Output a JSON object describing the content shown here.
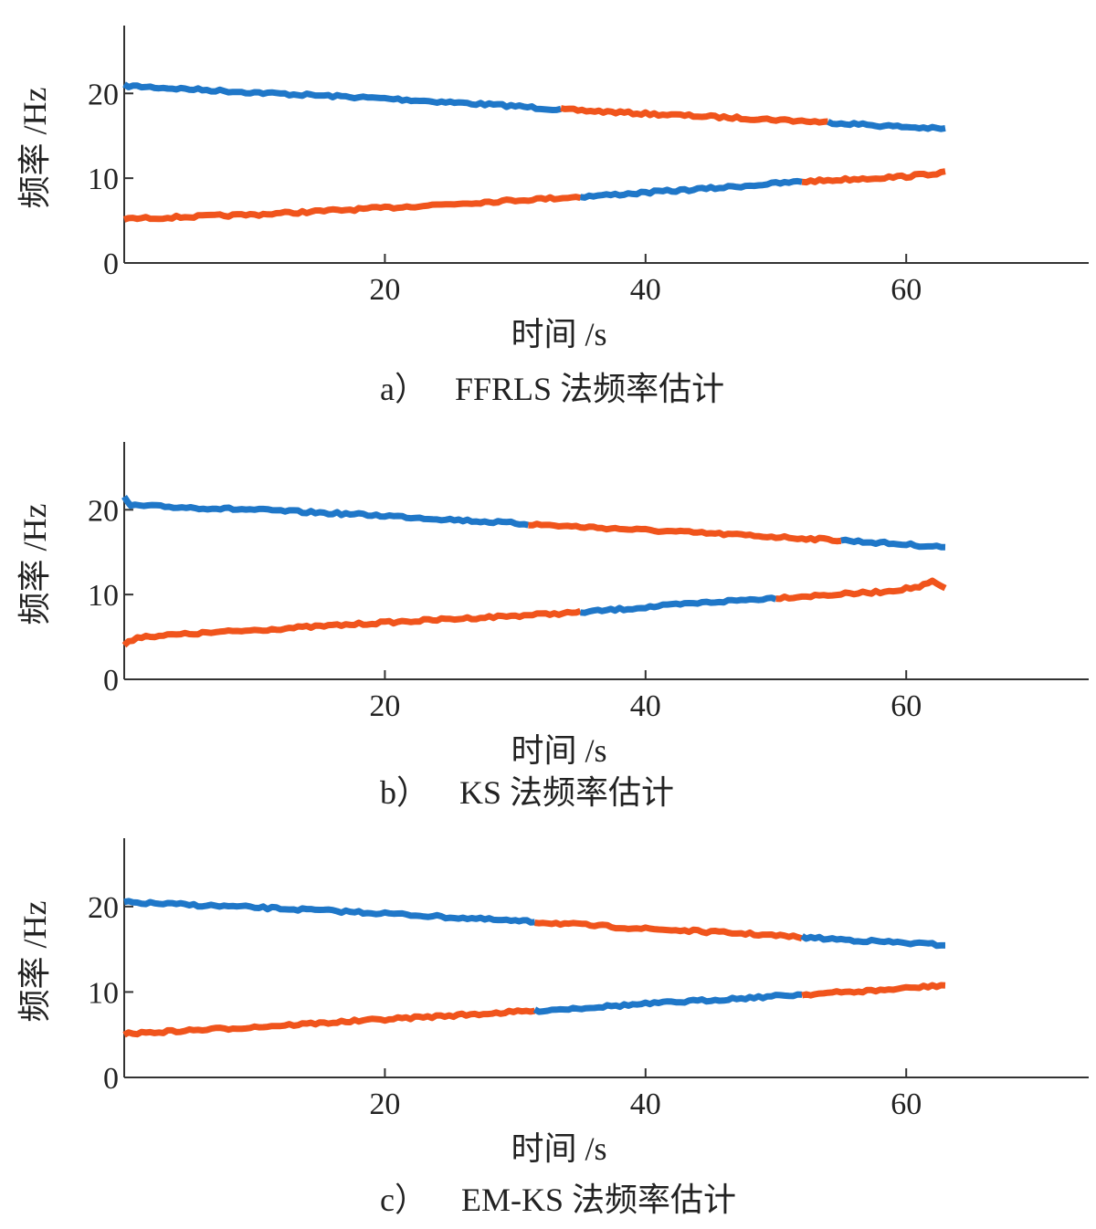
{
  "colors": {
    "blue": "#1f77c8",
    "orange": "#f0541c",
    "axis": "#333333"
  },
  "chart_data": [
    {
      "type": "line",
      "caption_label": "a）",
      "caption_text": "FFRLS 法频率估计",
      "xlabel": "时间 /s",
      "ylabel": "频率 /Hz",
      "xlim": [
        0,
        74
      ],
      "ylim": [
        0,
        28
      ],
      "xticks": [
        20,
        40,
        60
      ],
      "yticks": [
        0,
        10,
        20
      ],
      "grid": false,
      "series": [
        {
          "segments": [
            {
              "color": "blue",
              "x": [
                0,
                10,
                20,
                30,
                33.5
              ],
              "y": [
                20.9,
                20.1,
                19.4,
                18.5,
                18.1
              ]
            },
            {
              "color": "orange",
              "x": [
                33.5,
                40,
                50,
                54
              ],
              "y": [
                18.1,
                17.6,
                16.9,
                16.6
              ]
            },
            {
              "color": "blue",
              "x": [
                54,
                58,
                63
              ],
              "y": [
                16.6,
                16.2,
                15.8
              ]
            }
          ]
        },
        {
          "segments": [
            {
              "color": "orange",
              "x": [
                0,
                10,
                20,
                30,
                35
              ],
              "y": [
                5.2,
                5.7,
                6.5,
                7.4,
                7.8
              ]
            },
            {
              "color": "blue",
              "x": [
                35,
                45,
                52
              ],
              "y": [
                7.8,
                8.8,
                9.6
              ]
            },
            {
              "color": "orange",
              "x": [
                52,
                60,
                63
              ],
              "y": [
                9.6,
                10.2,
                10.7
              ]
            }
          ]
        }
      ]
    },
    {
      "type": "line",
      "caption_label": "b）",
      "caption_text": "KS 法频率估计",
      "xlabel": "时间 /s",
      "ylabel": "频率 /Hz",
      "xlim": [
        0,
        74
      ],
      "ylim": [
        0,
        28
      ],
      "xticks": [
        20,
        40,
        60
      ],
      "yticks": [
        0,
        10,
        20
      ],
      "grid": false,
      "series": [
        {
          "segments": [
            {
              "color": "blue",
              "x": [
                0,
                0.5,
                10,
                20,
                30,
                31
              ],
              "y": [
                21.4,
                20.5,
                20.0,
                19.3,
                18.4,
                18.3
              ]
            },
            {
              "color": "orange",
              "x": [
                31,
                40,
                50,
                55
              ],
              "y": [
                18.3,
                17.6,
                16.8,
                16.4
              ]
            },
            {
              "color": "blue",
              "x": [
                55,
                60,
                63
              ],
              "y": [
                16.4,
                15.9,
                15.6
              ]
            }
          ]
        },
        {
          "segments": [
            {
              "color": "orange",
              "x": [
                0,
                1,
                10,
                20,
                30,
                35
              ],
              "y": [
                4.0,
                5.0,
                5.8,
                6.7,
                7.5,
                7.9
              ]
            },
            {
              "color": "blue",
              "x": [
                35,
                45,
                50
              ],
              "y": [
                7.9,
                9.1,
                9.6
              ]
            },
            {
              "color": "orange",
              "x": [
                50,
                58,
                61,
                62,
                63
              ],
              "y": [
                9.6,
                10.3,
                10.9,
                11.5,
                10.7
              ]
            }
          ]
        }
      ]
    },
    {
      "type": "line",
      "caption_label": "c）",
      "caption_text": "EM-KS 法频率估计",
      "xlabel": "时间 /s",
      "ylabel": "频率 /Hz",
      "xlim": [
        0,
        74
      ],
      "ylim": [
        0,
        28
      ],
      "xticks": [
        20,
        40,
        60
      ],
      "yticks": [
        0,
        10,
        20
      ],
      "grid": false,
      "series": [
        {
          "segments": [
            {
              "color": "blue",
              "x": [
                0,
                10,
                20,
                30,
                31.5
              ],
              "y": [
                20.5,
                19.9,
                19.2,
                18.3,
                18.2
              ]
            },
            {
              "color": "orange",
              "x": [
                31.5,
                40,
                48,
                52
              ],
              "y": [
                18.2,
                17.4,
                16.8,
                16.4
              ]
            },
            {
              "color": "blue",
              "x": [
                52,
                58,
                63
              ],
              "y": [
                16.4,
                15.9,
                15.5
              ]
            }
          ]
        },
        {
          "segments": [
            {
              "color": "orange",
              "x": [
                0,
                10,
                20,
                31.5
              ],
              "y": [
                5.1,
                5.9,
                6.8,
                7.8
              ]
            },
            {
              "color": "blue",
              "x": [
                31.5,
                40,
                52
              ],
              "y": [
                7.8,
                8.6,
                9.7
              ]
            },
            {
              "color": "orange",
              "x": [
                52,
                58,
                63
              ],
              "y": [
                9.7,
                10.2,
                10.8
              ]
            }
          ]
        }
      ]
    }
  ]
}
